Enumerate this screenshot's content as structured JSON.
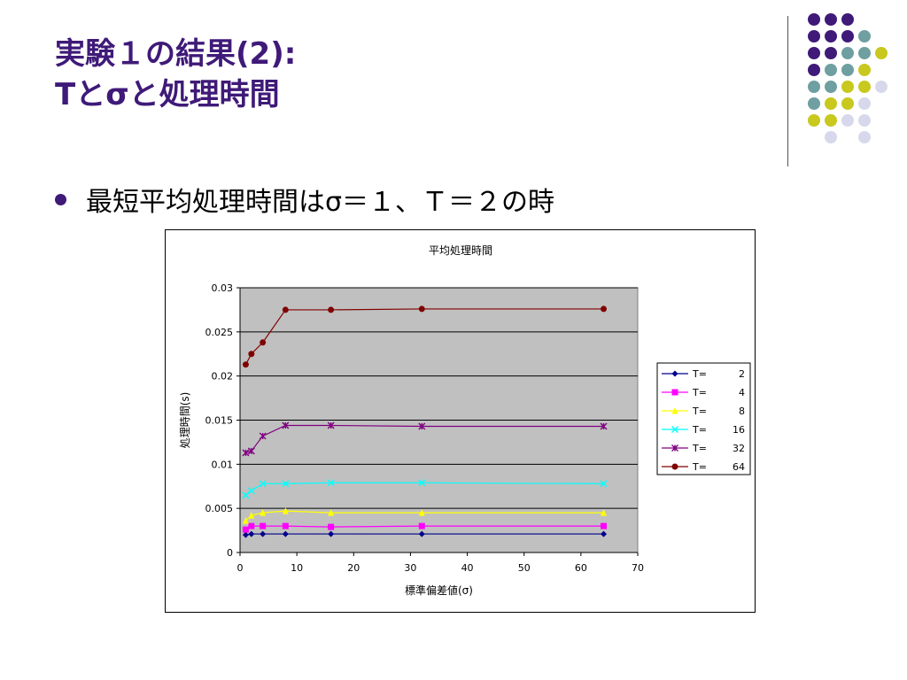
{
  "slide": {
    "title_line1": "実験１の結果(2):",
    "title_line2": "Tとσと処理時間",
    "bullet": "最短平均処理時間はσ＝１、Ｔ＝２の時"
  },
  "decor": {
    "dot_colors": {
      "purple": "#3f1a78",
      "teal": "#6f9fa0",
      "lime": "#c8c81e",
      "lavender": "#d8d8ec"
    }
  },
  "chart_data": {
    "type": "line",
    "title": "平均処理時間",
    "xlabel": "標準偏差値(σ)",
    "ylabel": "処理時間(s)",
    "xlim": [
      0,
      70
    ],
    "ylim": [
      0,
      0.03
    ],
    "xticks": [
      "0",
      "10",
      "20",
      "30",
      "40",
      "50",
      "60",
      "70"
    ],
    "yticks": [
      "0",
      "0.005",
      "0.01",
      "0.015",
      "0.02",
      "0.025",
      "0.03"
    ],
    "x": [
      1,
      2,
      4,
      8,
      16,
      32,
      64
    ],
    "plot_background": "#c0c0c0",
    "grid": "horizontal",
    "legend_position": "right",
    "series": [
      {
        "name": "T=",
        "value_label": "2",
        "color": "#00008b",
        "marker": "diamond",
        "values": [
          0.002,
          0.0021,
          0.0021,
          0.0021,
          0.0021,
          0.0021,
          0.0021
        ]
      },
      {
        "name": "T=",
        "value_label": "4",
        "color": "#ff00ff",
        "marker": "square",
        "values": [
          0.0026,
          0.003,
          0.003,
          0.003,
          0.0029,
          0.003,
          0.003
        ]
      },
      {
        "name": "T=",
        "value_label": "8",
        "color": "#ffff00",
        "marker": "triangle",
        "values": [
          0.0036,
          0.0042,
          0.0045,
          0.0047,
          0.0045,
          0.0045,
          0.0045
        ]
      },
      {
        "name": "T=",
        "value_label": "16",
        "color": "#00ffff",
        "marker": "x",
        "values": [
          0.0065,
          0.007,
          0.0078,
          0.0078,
          0.0079,
          0.0079,
          0.0078
        ]
      },
      {
        "name": "T=",
        "value_label": "32",
        "color": "#800080",
        "marker": "star",
        "values": [
          0.0113,
          0.0115,
          0.0132,
          0.0144,
          0.0144,
          0.0143,
          0.0143
        ]
      },
      {
        "name": "T=",
        "value_label": "64",
        "color": "#800000",
        "marker": "circle",
        "values": [
          0.0213,
          0.0225,
          0.0238,
          0.0275,
          0.0275,
          0.0276,
          0.0276
        ]
      }
    ]
  }
}
